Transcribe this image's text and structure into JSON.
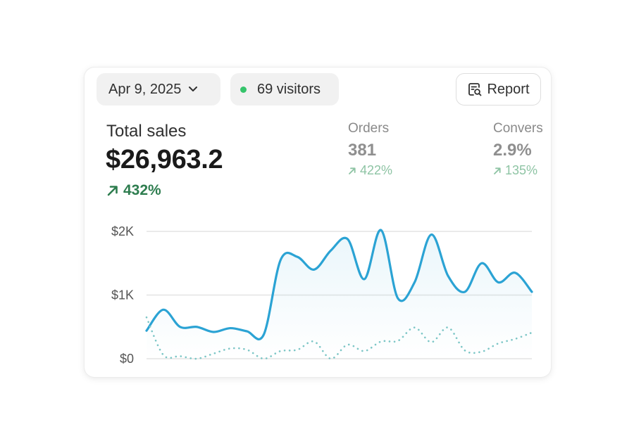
{
  "header": {
    "date_label": "Apr 9, 2025",
    "visitors_label": "69 visitors",
    "report_label": "Report"
  },
  "summary": {
    "total_label": "Total sales",
    "total_value": "$26,963.2",
    "total_delta": "432%"
  },
  "metrics": {
    "orders": {
      "label": "Orders",
      "value": "381",
      "delta": "422%"
    },
    "conversion": {
      "label": "Convers",
      "value": "2.9%",
      "delta": "135%"
    }
  },
  "colors": {
    "accent": "#2ba3d4",
    "positive": "#2e7d4f",
    "positive_faded": "#8ec4a4",
    "live_dot": "#35c46b",
    "grid": "#e4e4e4"
  },
  "icons": {
    "date_dropdown": "chevron-down-icon",
    "visitors": "live-dot-icon",
    "report": "report-search-icon",
    "delta": "arrow-up-right-icon"
  },
  "chart_data": {
    "type": "line",
    "ylim": [
      0,
      2000
    ],
    "yticks": [
      "$0",
      "$1K",
      "$2K"
    ],
    "grid": true,
    "series": [
      {
        "style": "solid",
        "color": "#2ba3d4",
        "values": [
          440,
          770,
          500,
          500,
          420,
          480,
          430,
          380,
          1550,
          1600,
          1400,
          1700,
          1880,
          1250,
          2020,
          950,
          1200,
          1950,
          1300,
          1050,
          1500,
          1200,
          1350,
          1050
        ]
      },
      {
        "style": "dotted",
        "color": "#7cc6c6",
        "values": [
          650,
          60,
          40,
          0,
          80,
          160,
          140,
          0,
          120,
          140,
          270,
          0,
          220,
          120,
          270,
          280,
          490,
          260,
          490,
          130,
          110,
          240,
          310,
          410
        ]
      }
    ]
  }
}
